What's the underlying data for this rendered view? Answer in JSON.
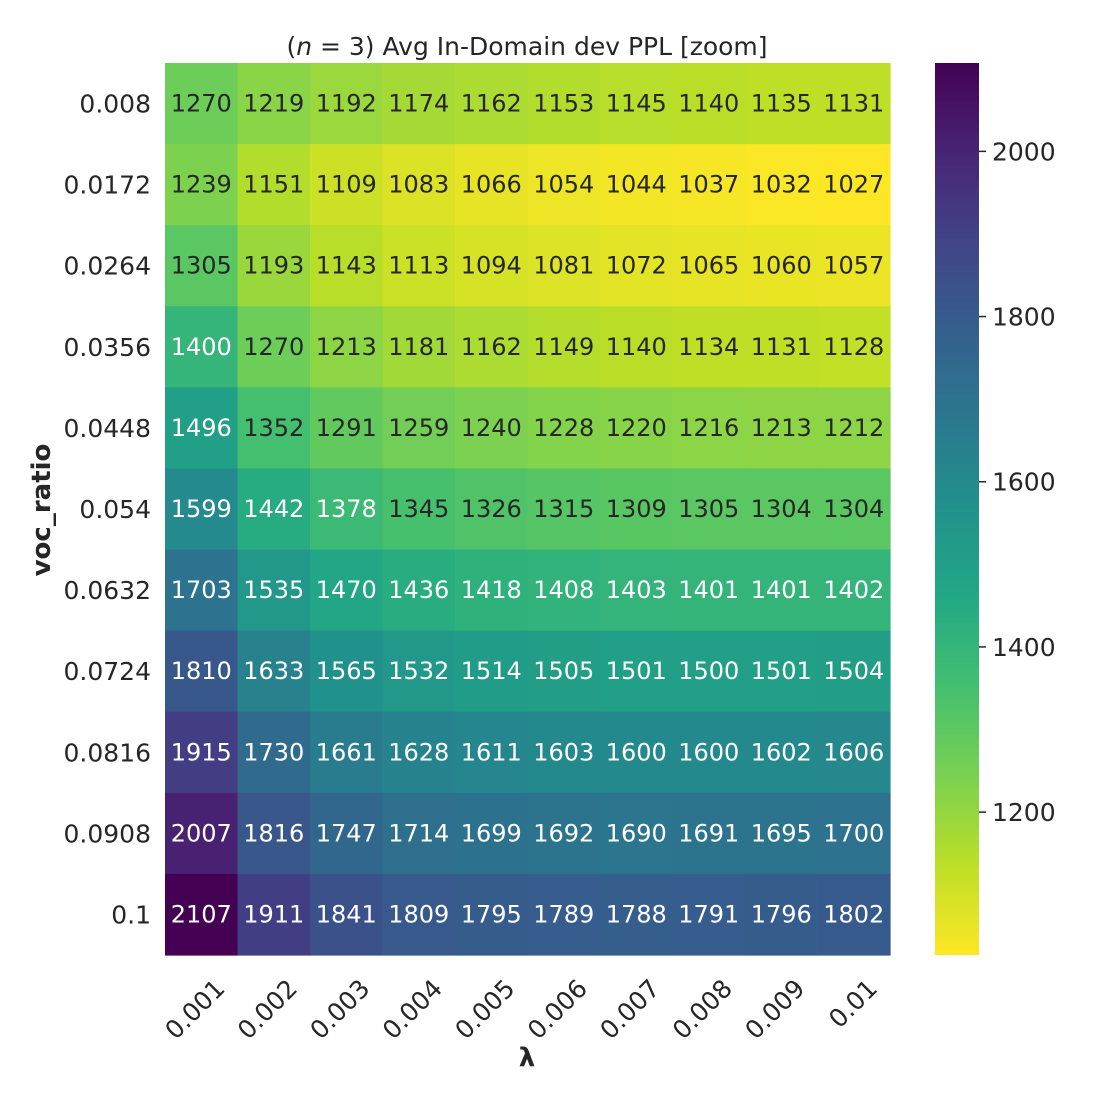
{
  "chart_data": {
    "type": "heatmap",
    "title": "(n = 3) Avg In-Domain dev PPL [zoom]",
    "title_parts": {
      "open": "(",
      "var": "n",
      "rest": " = 3) Avg In-Domain dev PPL [zoom]"
    },
    "xlabel": "λ",
    "ylabel": "voc_ratio",
    "x": [
      "0.001",
      "0.002",
      "0.003",
      "0.004",
      "0.005",
      "0.006",
      "0.007",
      "0.008",
      "0.009",
      "0.01"
    ],
    "y": [
      "0.008",
      "0.0172",
      "0.0264",
      "0.0356",
      "0.0448",
      "0.054",
      "0.0632",
      "0.0724",
      "0.0816",
      "0.0908",
      "0.1"
    ],
    "values": [
      [
        1270,
        1219,
        1192,
        1174,
        1162,
        1153,
        1145,
        1140,
        1135,
        1131
      ],
      [
        1239,
        1151,
        1109,
        1083,
        1066,
        1054,
        1044,
        1037,
        1032,
        1027
      ],
      [
        1305,
        1193,
        1143,
        1113,
        1094,
        1081,
        1072,
        1065,
        1060,
        1057
      ],
      [
        1400,
        1270,
        1213,
        1181,
        1162,
        1149,
        1140,
        1134,
        1131,
        1128
      ],
      [
        1496,
        1352,
        1291,
        1259,
        1240,
        1228,
        1220,
        1216,
        1213,
        1212
      ],
      [
        1599,
        1442,
        1378,
        1345,
        1326,
        1315,
        1309,
        1305,
        1304,
        1304
      ],
      [
        1703,
        1535,
        1470,
        1436,
        1418,
        1408,
        1403,
        1401,
        1401,
        1402
      ],
      [
        1810,
        1633,
        1565,
        1532,
        1514,
        1505,
        1501,
        1500,
        1501,
        1504
      ],
      [
        1915,
        1730,
        1661,
        1628,
        1611,
        1603,
        1600,
        1600,
        1602,
        1606
      ],
      [
        2007,
        1816,
        1747,
        1714,
        1699,
        1692,
        1690,
        1691,
        1695,
        1700
      ],
      [
        2107,
        1911,
        1841,
        1809,
        1795,
        1789,
        1788,
        1791,
        1796,
        1802
      ]
    ],
    "colormap": "viridis_r",
    "vmin": 1027,
    "vmax": 2107,
    "colorbar_ticks": [
      1200,
      1400,
      1600,
      1800,
      2000
    ],
    "annotate": true,
    "grid": false,
    "legend": "colorbar-right"
  }
}
